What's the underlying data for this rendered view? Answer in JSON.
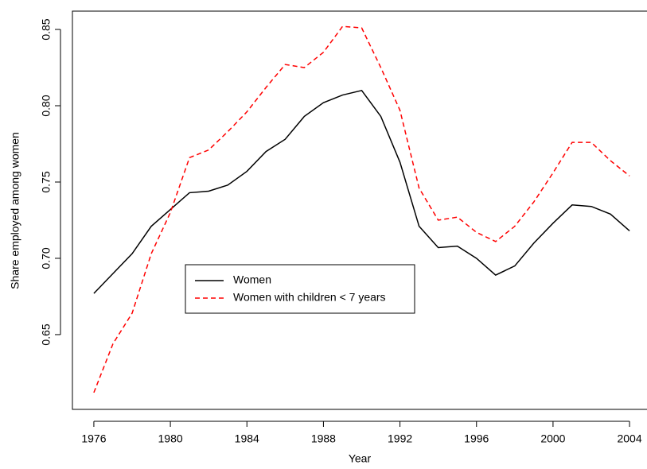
{
  "chart_data": {
    "type": "line",
    "x": [
      1976,
      1977,
      1978,
      1979,
      1980,
      1981,
      1982,
      1983,
      1984,
      1985,
      1986,
      1987,
      1988,
      1989,
      1990,
      1991,
      1992,
      1993,
      1994,
      1995,
      1996,
      1997,
      1998,
      1999,
      2000,
      2001,
      2002,
      2003,
      2004
    ],
    "series": [
      {
        "name": "Women",
        "color": "#000000",
        "dash": "solid",
        "values": [
          0.677,
          0.69,
          0.703,
          0.721,
          0.732,
          0.743,
          0.744,
          0.748,
          0.757,
          0.77,
          0.778,
          0.793,
          0.802,
          0.807,
          0.81,
          0.793,
          0.763,
          0.721,
          0.707,
          0.708,
          0.7,
          0.689,
          0.695,
          0.71,
          0.723,
          0.735,
          0.734,
          0.729,
          0.718
        ]
      },
      {
        "name": "Women with children < 7 years",
        "color": "#ff0000",
        "dash": "dashed",
        "values": [
          0.612,
          0.644,
          0.664,
          0.703,
          0.73,
          0.766,
          0.771,
          0.783,
          0.796,
          0.812,
          0.827,
          0.825,
          0.835,
          0.852,
          0.851,
          0.825,
          0.797,
          0.746,
          0.725,
          0.727,
          0.717,
          0.711,
          0.721,
          0.737,
          0.756,
          0.776,
          0.776,
          0.764,
          0.754
        ]
      }
    ],
    "x_label": "Year",
    "y_label": "Share employed among women",
    "xlim": [
      1974.88,
      2005.12
    ],
    "xticks": [
      1976,
      1980,
      1984,
      1988,
      1992,
      1996,
      2000,
      2004
    ],
    "ylim": [
      0.601,
      0.862
    ],
    "yticks": [
      0.65,
      {
        "value": 0.7,
        "label": "0.70"
      },
      0.75,
      {
        "value": 0.8,
        "label": "0.80"
      },
      0.85
    ],
    "grid": false
  }
}
